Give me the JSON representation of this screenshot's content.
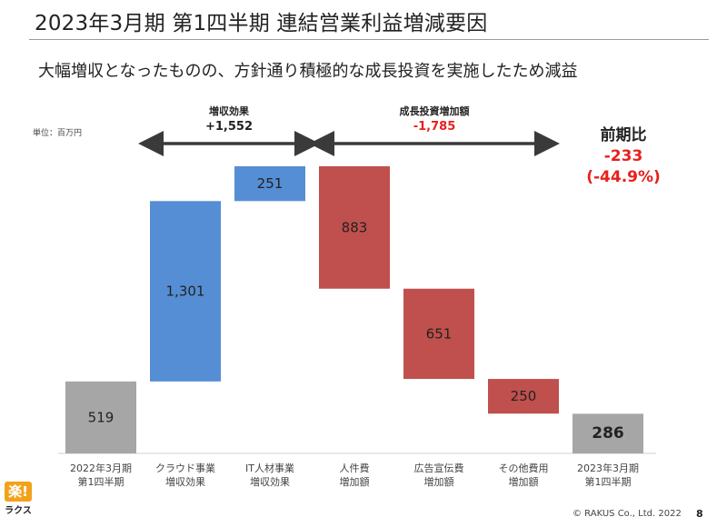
{
  "title": "2023年3月期 第1四半期 連結営業利益増減要因",
  "subtitle": "大幅増収となったものの、方針通り積極的な成長投資を実施したため減益",
  "unit_label": "単位：百万円",
  "groups": {
    "revenue": {
      "label": "増収効果",
      "value": "+1,552"
    },
    "investment": {
      "label": "成長投資増加額",
      "value": "-1,785"
    }
  },
  "summary": {
    "heading": "前期比",
    "value": "-233",
    "percent": "(-44.9%)"
  },
  "colors": {
    "base": "#a6a6a6",
    "increase": "#558ed5",
    "decrease": "#c0504d",
    "negative_text": "#e8201a"
  },
  "chart_data": {
    "type": "bar",
    "subtype": "waterfall",
    "unit": "百万円",
    "categories": [
      [
        "2022年3月期",
        "第1四半期"
      ],
      [
        "クラウド事業",
        "増収効果"
      ],
      [
        "IT人材事業",
        "増収効果"
      ],
      [
        "人件費",
        "増加額"
      ],
      [
        "広告宣伝費",
        "増加額"
      ],
      [
        "その他費用",
        "増加額"
      ],
      [
        "2023年3月期",
        "第1四半期"
      ]
    ],
    "values": [
      519,
      1301,
      251,
      -883,
      -651,
      -250,
      286
    ],
    "value_labels": [
      "519",
      "1,301",
      "251",
      "883",
      "651",
      "250",
      "286"
    ],
    "kinds": [
      "total",
      "increase",
      "increase",
      "decrease",
      "decrease",
      "decrease",
      "total"
    ],
    "ylim": [
      0,
      2100
    ]
  },
  "footer": {
    "logo_mark": "楽!",
    "logo_text": "ラクス",
    "copyright": "© RAKUS Co., Ltd. 2022",
    "page": "8"
  }
}
